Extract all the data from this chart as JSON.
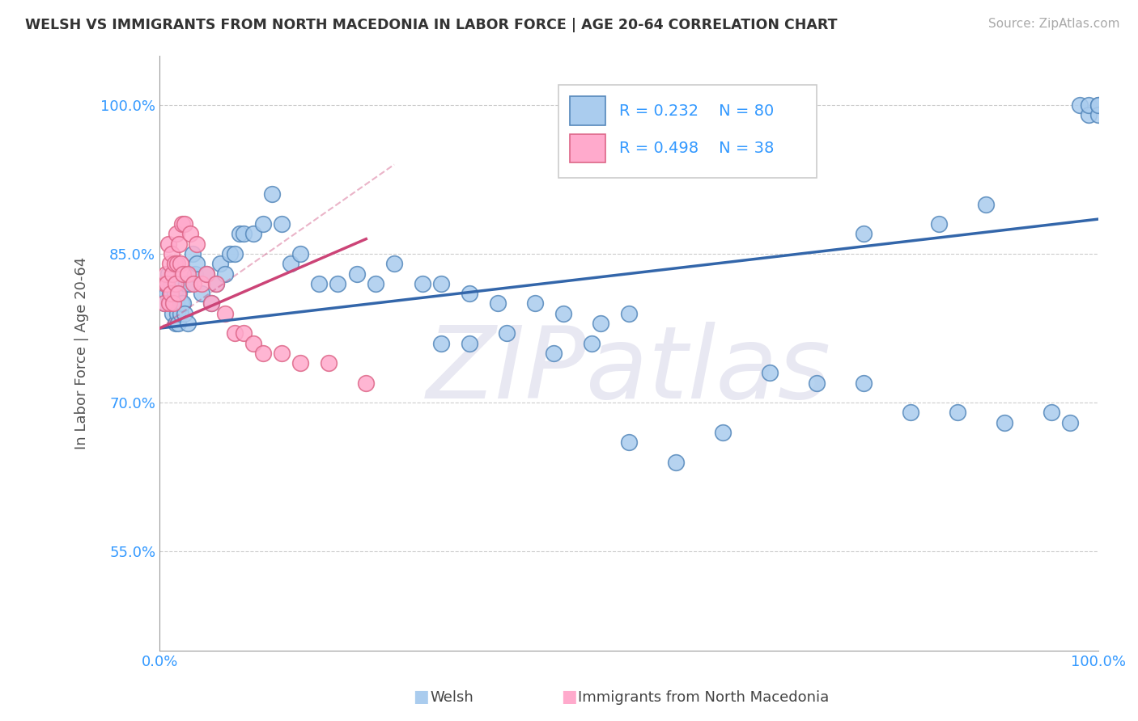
{
  "title": "WELSH VS IMMIGRANTS FROM NORTH MACEDONIA IN LABOR FORCE | AGE 20-64 CORRELATION CHART",
  "source": "Source: ZipAtlas.com",
  "ylabel": "In Labor Force | Age 20-64",
  "xlim": [
    0.0,
    1.0
  ],
  "ylim": [
    0.45,
    1.05
  ],
  "xticks": [
    0.0,
    0.25,
    0.5,
    0.75,
    1.0
  ],
  "xticklabels": [
    "0.0%",
    "",
    "",
    "",
    "100.0%"
  ],
  "ytick_positions": [
    0.55,
    0.7,
    0.85,
    1.0
  ],
  "ytick_labels": [
    "55.0%",
    "70.0%",
    "85.0%",
    "100.0%"
  ],
  "legend_welsh_R": "0.232",
  "legend_welsh_N": "80",
  "legend_mac_R": "0.498",
  "legend_mac_N": "38",
  "welsh_color": "#aaccee",
  "welsh_edge_color": "#5588bb",
  "mac_color": "#ffaacc",
  "mac_edge_color": "#dd6688",
  "welsh_line_color": "#3366aa",
  "mac_line_color": "#cc4477",
  "watermark_color": "#e8e8f2",
  "welsh_x": [
    0.005,
    0.007,
    0.008,
    0.009,
    0.01,
    0.011,
    0.012,
    0.013,
    0.014,
    0.015,
    0.016,
    0.017,
    0.018,
    0.019,
    0.02,
    0.021,
    0.022,
    0.023,
    0.025,
    0.027,
    0.028,
    0.03,
    0.032,
    0.035,
    0.038,
    0.04,
    0.045,
    0.05,
    0.055,
    0.06,
    0.065,
    0.07,
    0.075,
    0.08,
    0.085,
    0.09,
    0.1,
    0.11,
    0.12,
    0.13,
    0.14,
    0.15,
    0.17,
    0.19,
    0.21,
    0.23,
    0.25,
    0.28,
    0.3,
    0.33,
    0.36,
    0.4,
    0.43,
    0.47,
    0.5,
    0.3,
    0.33,
    0.37,
    0.42,
    0.46,
    0.5,
    0.55,
    0.6,
    0.65,
    0.7,
    0.75,
    0.8,
    0.85,
    0.9,
    0.95,
    0.97,
    0.98,
    0.99,
    0.99,
    1.0,
    1.0,
    1.0,
    0.75,
    0.83,
    0.88
  ],
  "welsh_y": [
    0.8,
    0.82,
    0.81,
    0.83,
    0.8,
    0.81,
    0.8,
    0.82,
    0.79,
    0.8,
    0.81,
    0.78,
    0.8,
    0.79,
    0.78,
    0.81,
    0.79,
    0.8,
    0.8,
    0.79,
    0.82,
    0.78,
    0.82,
    0.85,
    0.83,
    0.84,
    0.81,
    0.83,
    0.8,
    0.82,
    0.84,
    0.83,
    0.85,
    0.85,
    0.87,
    0.87,
    0.87,
    0.88,
    0.91,
    0.88,
    0.84,
    0.85,
    0.82,
    0.82,
    0.83,
    0.82,
    0.84,
    0.82,
    0.82,
    0.81,
    0.8,
    0.8,
    0.79,
    0.78,
    0.79,
    0.76,
    0.76,
    0.77,
    0.75,
    0.76,
    0.66,
    0.64,
    0.67,
    0.73,
    0.72,
    0.72,
    0.69,
    0.69,
    0.68,
    0.69,
    0.68,
    1.0,
    0.99,
    1.0,
    1.0,
    0.99,
    1.0,
    0.87,
    0.88,
    0.9
  ],
  "mac_x": [
    0.005,
    0.006,
    0.007,
    0.008,
    0.009,
    0.01,
    0.011,
    0.012,
    0.013,
    0.014,
    0.015,
    0.016,
    0.017,
    0.018,
    0.019,
    0.02,
    0.021,
    0.022,
    0.024,
    0.025,
    0.027,
    0.03,
    0.033,
    0.036,
    0.04,
    0.045,
    0.05,
    0.055,
    0.06,
    0.07,
    0.08,
    0.09,
    0.1,
    0.11,
    0.13,
    0.15,
    0.18,
    0.22
  ],
  "mac_y": [
    0.8,
    0.82,
    0.83,
    0.82,
    0.86,
    0.8,
    0.84,
    0.81,
    0.85,
    0.83,
    0.8,
    0.84,
    0.82,
    0.87,
    0.84,
    0.81,
    0.86,
    0.84,
    0.88,
    0.83,
    0.88,
    0.83,
    0.87,
    0.82,
    0.86,
    0.82,
    0.83,
    0.8,
    0.82,
    0.79,
    0.77,
    0.77,
    0.76,
    0.75,
    0.75,
    0.74,
    0.74,
    0.72
  ],
  "welsh_line_x0": 0.0,
  "welsh_line_x1": 1.0,
  "welsh_line_y0": 0.775,
  "welsh_line_y1": 0.885,
  "mac_line_x0": 0.0,
  "mac_line_x1": 0.22,
  "mac_line_y0": 0.775,
  "mac_line_y1": 0.865
}
